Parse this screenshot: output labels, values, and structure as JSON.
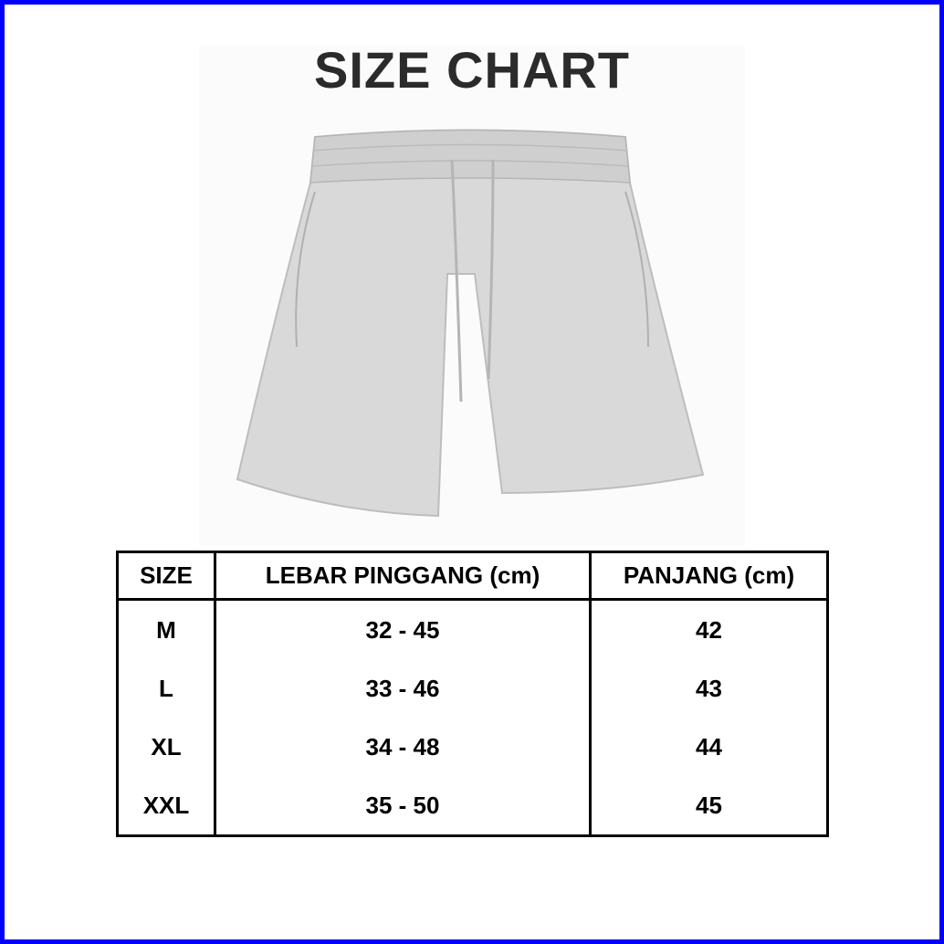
{
  "title": "SIZE CHART",
  "colors": {
    "frame": "#0000ff",
    "garment": "#d9d9d9"
  },
  "image": "grey-drawstring-shorts",
  "table": {
    "headers": [
      "SIZE",
      "LEBAR PINGGANG (cm)",
      "PANJANG (cm)"
    ],
    "rows": [
      {
        "size": "M",
        "waist": "32 - 45",
        "length": "42"
      },
      {
        "size": "L",
        "waist": "33 - 46",
        "length": "43"
      },
      {
        "size": "XL",
        "waist": "34 - 48",
        "length": "44"
      },
      {
        "size": "XXL",
        "waist": "35 - 50",
        "length": "45"
      }
    ]
  }
}
